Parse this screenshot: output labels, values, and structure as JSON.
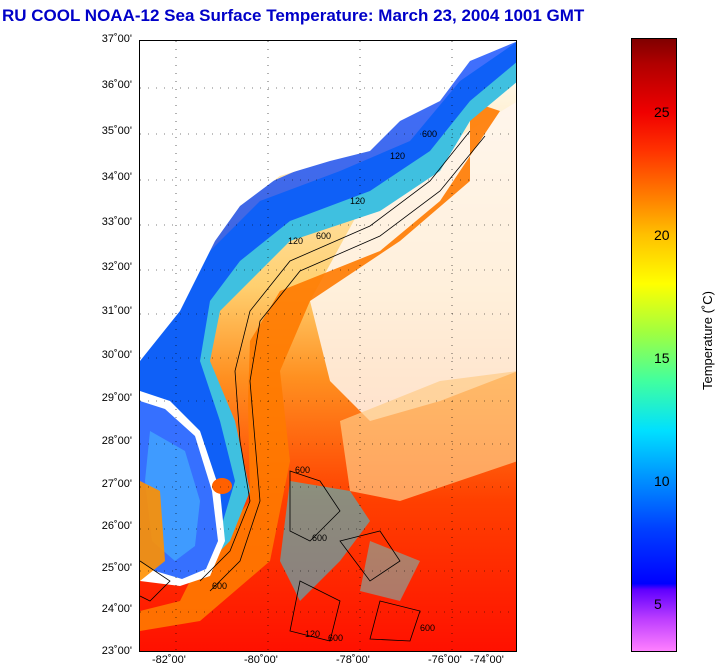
{
  "title": "RU COOL  NOAA-12  Sea Surface Temperature:  March 23, 2004 1001 GMT",
  "map": {
    "lat_labels": [
      "37˚00'",
      "36˚00'",
      "35˚00'",
      "34˚00'",
      "33˚00'",
      "32˚00'",
      "31˚00'",
      "30˚00'",
      "29˚00'",
      "28˚00'",
      "27˚00'",
      "26˚00'",
      "25˚00'",
      "24˚00'",
      "23˚00'"
    ],
    "lon_labels": [
      "-82˚00'",
      "-80˚00'",
      "-78˚00'",
      "-76˚00'",
      "-74˚00'"
    ],
    "isobaths": [
      "120",
      "600"
    ],
    "colors": {
      "land": "#ffffff",
      "warm": "#ff2000",
      "cold": "#0050ff"
    }
  },
  "colorbar": {
    "ticks": [
      "25",
      "20",
      "15",
      "10",
      "5"
    ],
    "label": "Temperature (˚C)",
    "range": [
      3,
      28
    ]
  }
}
